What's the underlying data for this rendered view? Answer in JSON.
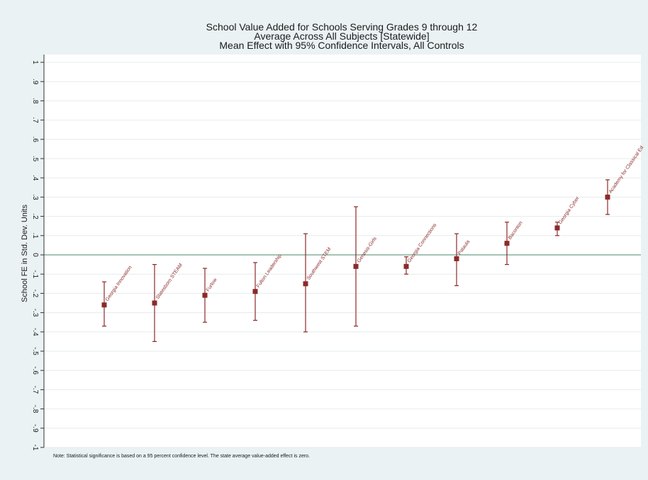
{
  "chart_data": {
    "type": "scatter",
    "title": [
      "School Value Added for Schools Serving Grades 9 through 12",
      "Average Across All Subjects [Statewide]",
      "Mean Effect with 95% Confidence Intervals, All Controls"
    ],
    "ylabel": "School FE in Std. Dev. Units",
    "xlabel": "",
    "ylim": [
      -1,
      1
    ],
    "yticks": [
      "-1",
      "-.9",
      "-.8",
      "-.7",
      "-.6",
      "-.5",
      "-.4",
      "-.3",
      "-.2",
      "-.1",
      "0",
      ".1",
      ".2",
      ".3",
      ".4",
      ".5",
      ".6",
      ".7",
      ".8",
      ".9",
      "1"
    ],
    "reference_line": 0,
    "grid": true,
    "note": "Note: Statistical significance is based on a 95 percent confidence level. The state average value-added effect is zero.",
    "points": [
      {
        "label": "Georgia Innovation",
        "mean": -0.26,
        "lower": -0.37,
        "upper": -0.14
      },
      {
        "label": "Statesboro STEAM",
        "mean": -0.25,
        "lower": -0.45,
        "upper": -0.05
      },
      {
        "label": "Furlow",
        "mean": -0.21,
        "lower": -0.35,
        "upper": -0.07
      },
      {
        "label": "Fulton Leadership",
        "mean": -0.19,
        "lower": -0.34,
        "upper": -0.04
      },
      {
        "label": "Southwest STEM",
        "mean": -0.15,
        "lower": -0.4,
        "upper": 0.11
      },
      {
        "label": "Genesis-Girls",
        "mean": -0.06,
        "lower": -0.37,
        "upper": 0.25
      },
      {
        "label": "Georgia Connections",
        "mean": -0.06,
        "lower": -0.1,
        "upper": -0.01
      },
      {
        "label": "Pataula",
        "mean": -0.02,
        "lower": -0.16,
        "upper": 0.11
      },
      {
        "label": "Baconton",
        "mean": 0.06,
        "lower": -0.05,
        "upper": 0.17
      },
      {
        "label": "Georgia Cyber",
        "mean": 0.14,
        "lower": 0.1,
        "upper": 0.17
      },
      {
        "label": "Academy for Classical Ed",
        "mean": 0.3,
        "lower": 0.21,
        "upper": 0.39
      }
    ],
    "colors": {
      "marker": "#8b2a2a",
      "ci": "#8b2a2a",
      "zero_line": "#4a8a6a",
      "grid": "#e6ecee",
      "plot_bg": "#ffffff",
      "outer_bg": "#eaf2f3"
    }
  }
}
